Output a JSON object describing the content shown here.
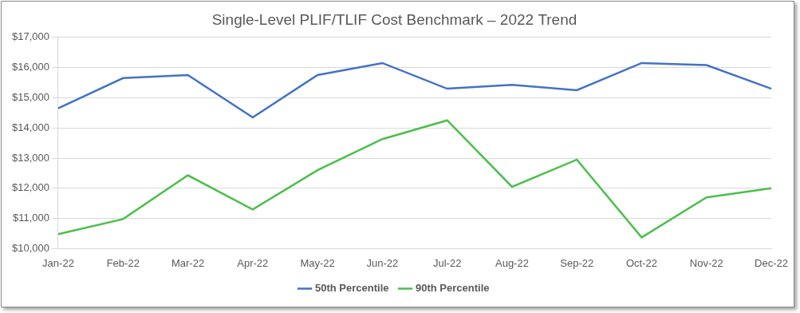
{
  "chart_data": {
    "type": "line",
    "title": "Single-Level PLIF/TLIF Cost Benchmark – 2022 Trend",
    "categories": [
      "Jan-22",
      "Feb-22",
      "Mar-22",
      "Apr-22",
      "May-22",
      "Jun-22",
      "Jul-22",
      "Aug-22",
      "Sep-22",
      "Oct-22",
      "Nov-22",
      "Dec-22"
    ],
    "series": [
      {
        "name": "50th Percentile",
        "color": "#4472c4",
        "values": [
          14650,
          15650,
          15750,
          14350,
          15750,
          16150,
          15300,
          15430,
          15250,
          16150,
          16080,
          15300
        ]
      },
      {
        "name": "90th Percentile",
        "color": "#4cbf4c",
        "values": [
          10480,
          10980,
          12430,
          11300,
          12600,
          13630,
          14250,
          12050,
          12950,
          10370,
          11700,
          12000
        ]
      }
    ],
    "ylim": [
      10000,
      17000
    ],
    "yticks": [
      {
        "value": 10000,
        "label": "$10,000"
      },
      {
        "value": 11000,
        "label": "$11,000"
      },
      {
        "value": 12000,
        "label": "$12,000"
      },
      {
        "value": 13000,
        "label": "$13,000"
      },
      {
        "value": 14000,
        "label": "$14,000"
      },
      {
        "value": 15000,
        "label": "$15,000"
      },
      {
        "value": 16000,
        "label": "$16,000"
      },
      {
        "value": 17000,
        "label": "$17,000"
      }
    ],
    "grid": true,
    "legend": "bottom"
  }
}
